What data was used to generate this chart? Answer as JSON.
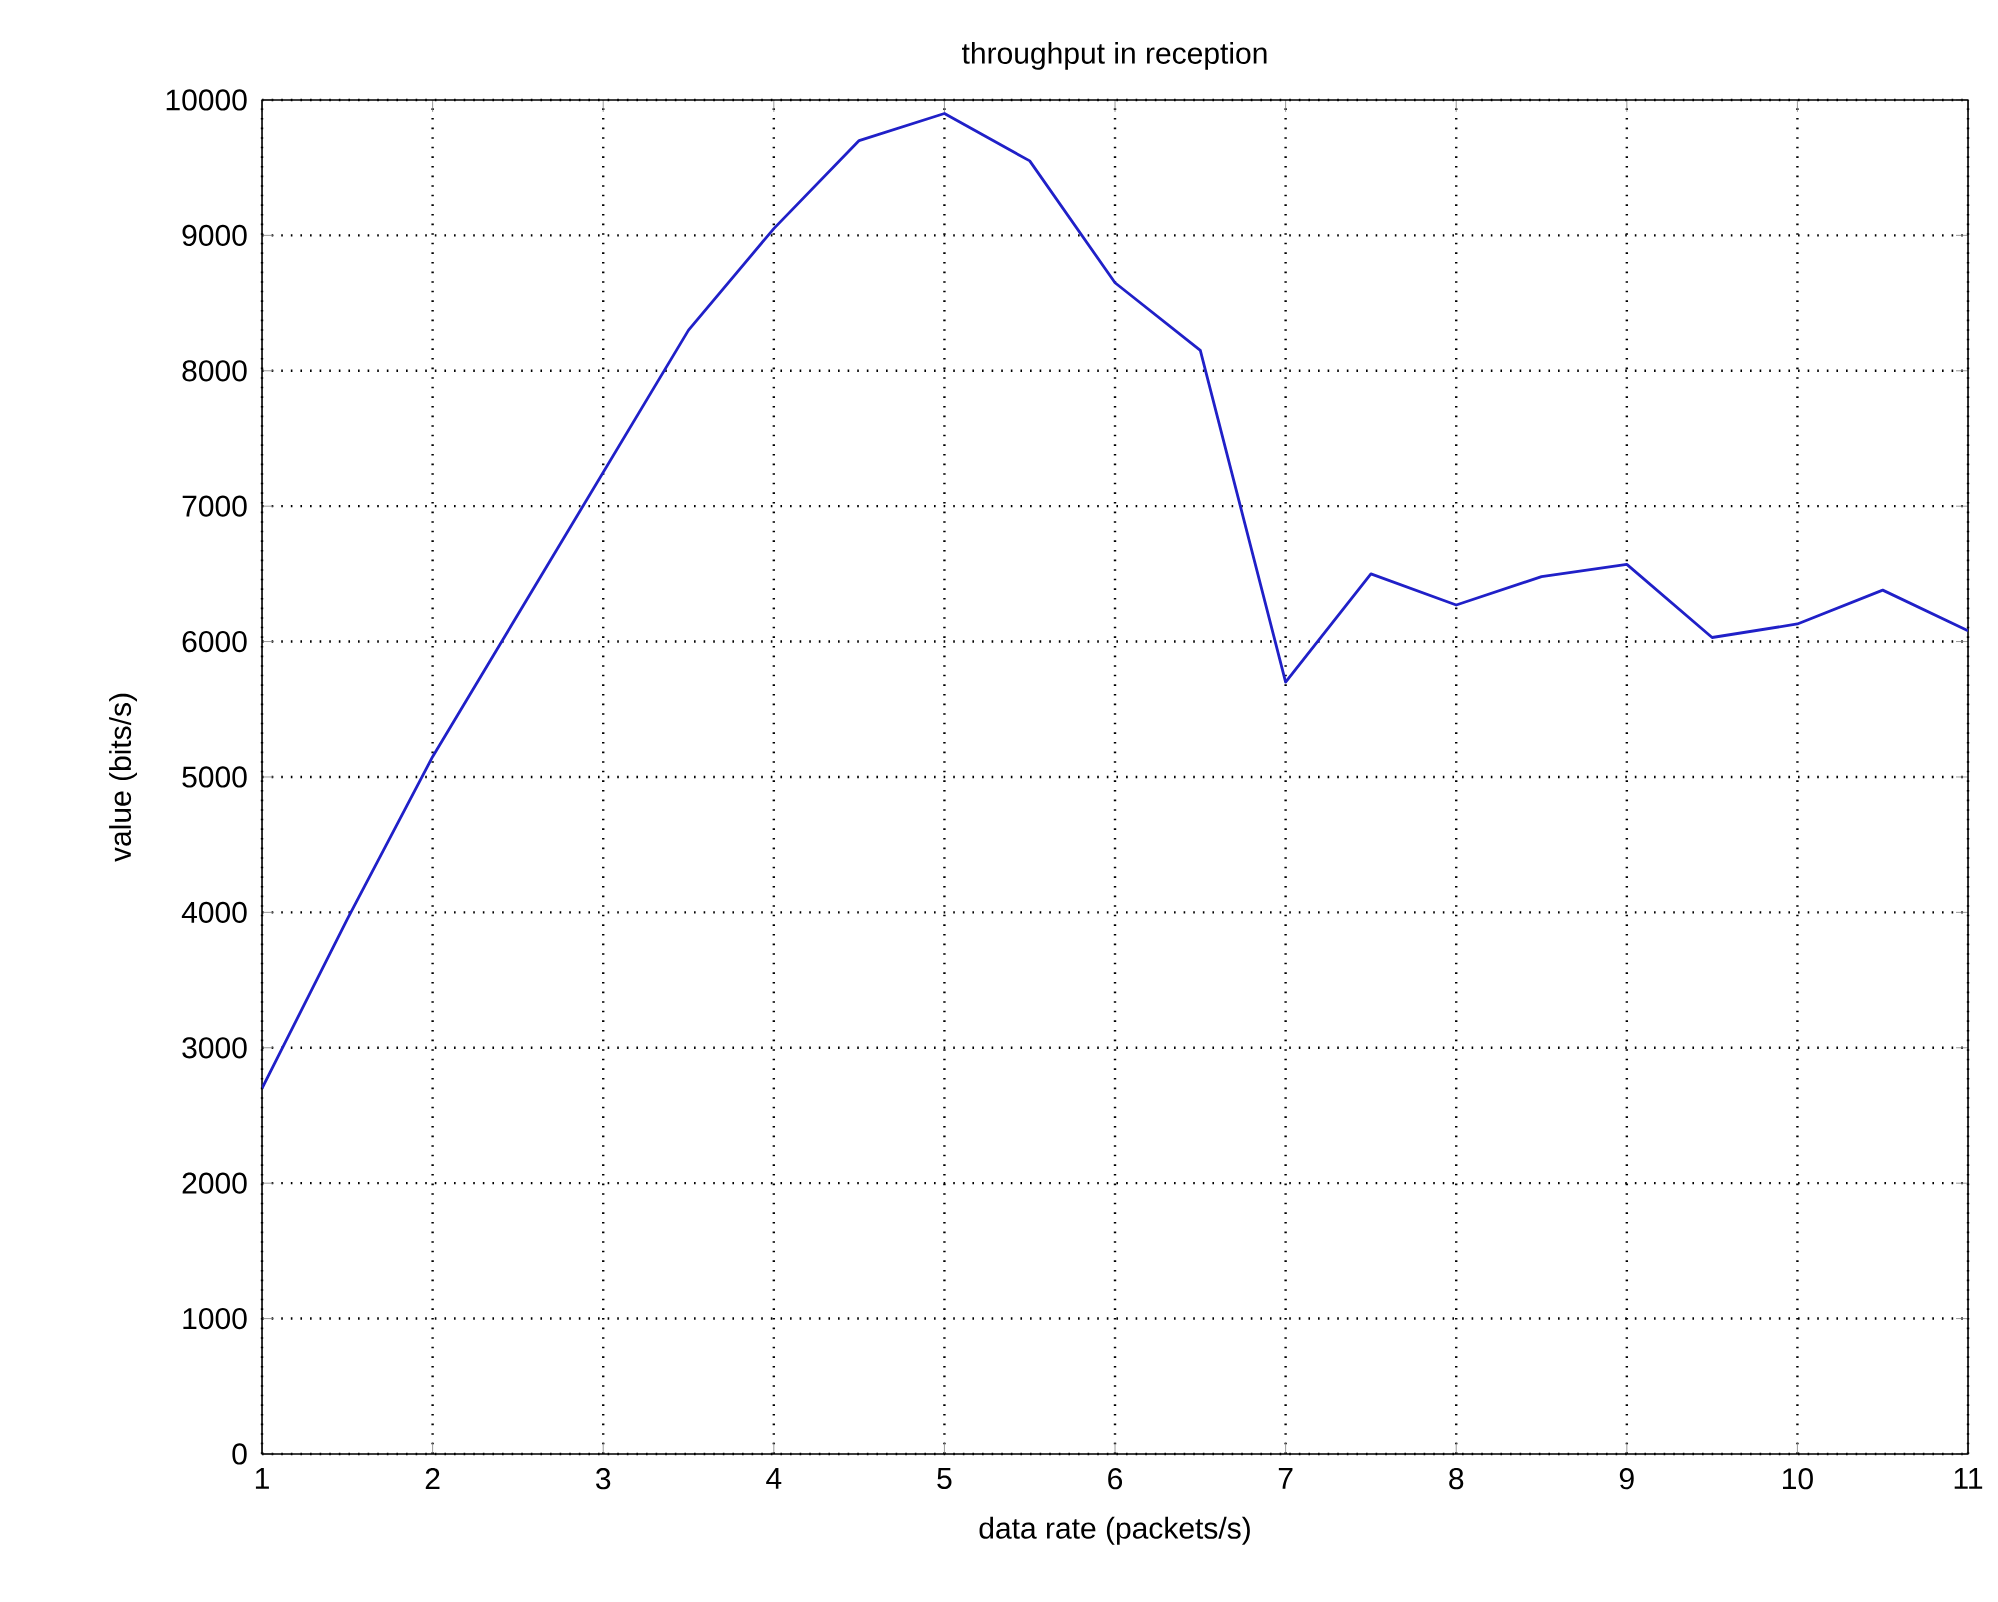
{
  "chart_data": {
    "type": "line",
    "title": "throughput in reception",
    "xlabel": "data rate (packets/s)",
    "ylabel": "value (bits/s)",
    "x": [
      1,
      1.5,
      2,
      2.5,
      3,
      3.5,
      4,
      4.5,
      5,
      5.5,
      6,
      6.5,
      7,
      7.5,
      8,
      8.5,
      9,
      9.5,
      10,
      10.5,
      11
    ],
    "series": [
      {
        "color": "#2020c8",
        "values": [
          2700,
          3950,
          5150,
          6200,
          7250,
          8300,
          9050,
          9700,
          9900,
          9550,
          8650,
          8150,
          5700,
          6500,
          6270,
          6480,
          6570,
          6030,
          6130,
          6380,
          6080
        ]
      }
    ],
    "xlim": [
      1,
      11
    ],
    "ylim": [
      0,
      10000
    ],
    "xticks": [
      1,
      2,
      3,
      4,
      5,
      6,
      7,
      8,
      9,
      10,
      11
    ],
    "yticks": [
      0,
      1000,
      2000,
      3000,
      4000,
      5000,
      6000,
      7000,
      8000,
      9000,
      10000
    ],
    "grid": true,
    "line_style": "solid"
  }
}
